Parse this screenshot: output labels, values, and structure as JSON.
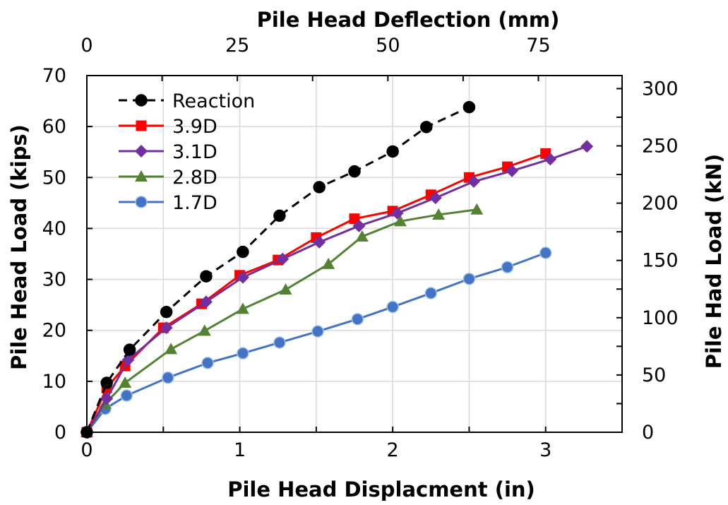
{
  "chart_data": {
    "type": "scatter",
    "xlabel": "Pile Head Displacment (in)",
    "x2label": "Pile Head Deflection (mm)",
    "ylabel": "Pile Head Load (kips)",
    "y2label": "Pile Had Load (kN)",
    "xlim": [
      0,
      3.5
    ],
    "ylim": [
      0,
      70
    ],
    "x_ticks": [
      0,
      1,
      2,
      3
    ],
    "y_ticks": [
      0,
      10,
      20,
      30,
      40,
      50,
      60,
      70
    ],
    "x2_ticks": [
      0,
      25,
      50,
      75
    ],
    "y2_ticks": [
      0,
      50,
      100,
      150,
      200,
      250,
      300
    ],
    "grid": true,
    "legend_position": "top-left",
    "series": [
      {
        "name": "Reaction",
        "color": "#000000",
        "marker": "circle",
        "line_style": "dashed",
        "x": [
          0.0,
          0.13,
          0.28,
          0.52,
          0.78,
          1.02,
          1.26,
          1.52,
          1.75,
          2.0,
          2.22,
          2.5
        ],
        "y": [
          0.0,
          9.7,
          16.2,
          23.6,
          30.6,
          35.4,
          42.5,
          48.1,
          51.2,
          55.1,
          59.9,
          63.8
        ]
      },
      {
        "name": "3.9D",
        "color": "#ff0000",
        "marker": "square",
        "line_style": "solid",
        "x": [
          0.0,
          0.13,
          0.25,
          0.5,
          0.75,
          1.0,
          1.25,
          1.5,
          1.75,
          2.0,
          2.25,
          2.5,
          2.75,
          3.0
        ],
        "y": [
          0.0,
          8.7,
          13.0,
          20.5,
          25.2,
          30.8,
          33.8,
          38.2,
          41.9,
          43.4,
          46.6,
          50.0,
          52.1,
          54.7
        ]
      },
      {
        "name": "3.1D",
        "color": "#7030a0",
        "marker": "diamond",
        "line_style": "solid",
        "x": [
          0.0,
          0.13,
          0.27,
          0.52,
          0.78,
          1.02,
          1.28,
          1.52,
          1.78,
          2.03,
          2.28,
          2.53,
          2.78,
          3.03,
          3.27
        ],
        "y": [
          0.0,
          6.6,
          14.2,
          20.5,
          25.6,
          30.4,
          34.0,
          37.3,
          40.5,
          43.0,
          46.0,
          49.2,
          51.3,
          53.6,
          56.1
        ]
      },
      {
        "name": "2.8D",
        "color": "#548235",
        "marker": "triangle",
        "line_style": "solid",
        "x": [
          0.0,
          0.12,
          0.25,
          0.55,
          0.77,
          1.02,
          1.3,
          1.58,
          1.8,
          2.05,
          2.3,
          2.55
        ],
        "y": [
          0.0,
          5.6,
          9.7,
          16.3,
          19.9,
          24.2,
          28.0,
          33.0,
          38.4,
          41.4,
          42.7,
          43.7
        ]
      },
      {
        "name": "1.7D",
        "color": "#4472c4",
        "marker": "circle",
        "line_style": "solid",
        "x": [
          0.0,
          0.12,
          0.26,
          0.53,
          0.79,
          1.02,
          1.26,
          1.51,
          1.77,
          2.0,
          2.25,
          2.5,
          2.75,
          3.0
        ],
        "y": [
          0.0,
          4.6,
          7.2,
          10.7,
          13.6,
          15.5,
          17.6,
          19.8,
          22.2,
          24.6,
          27.3,
          30.1,
          32.4,
          35.2
        ]
      }
    ]
  }
}
